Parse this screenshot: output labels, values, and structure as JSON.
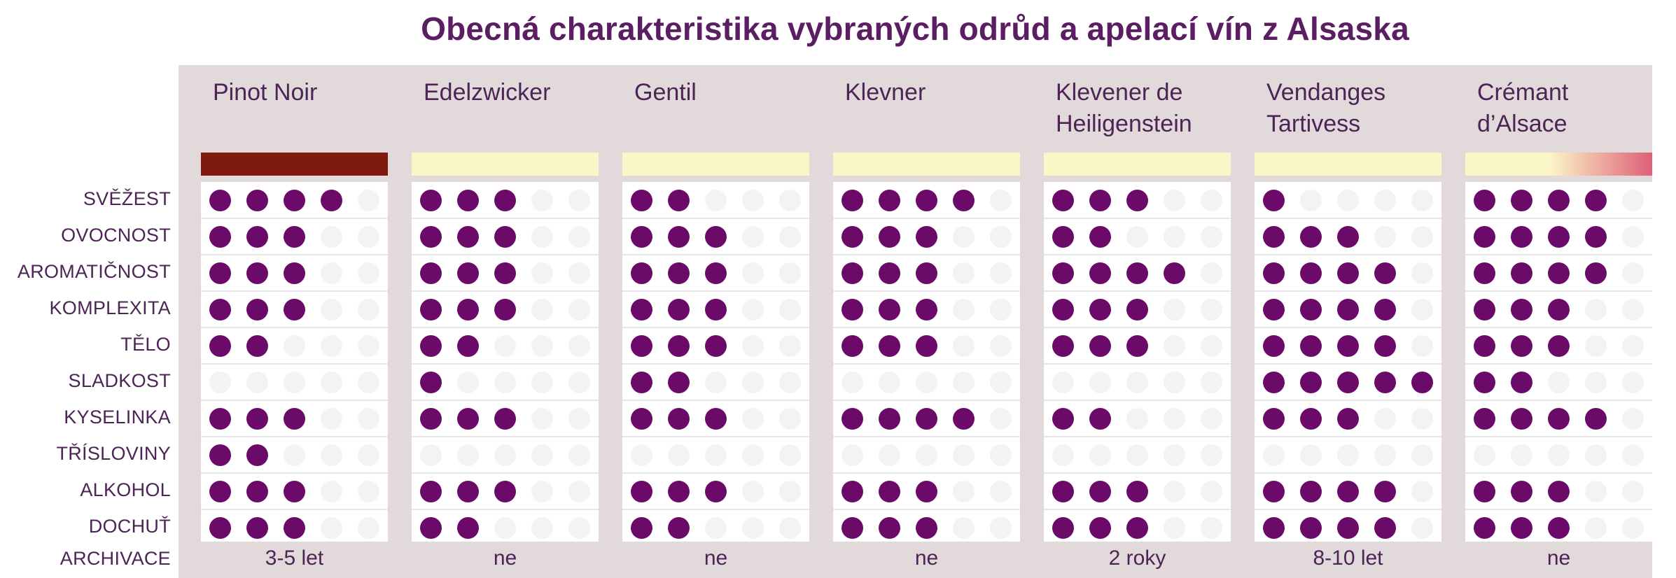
{
  "title": "Obecná charakteristika vybraných odrůd a apelací vín z Alsaska",
  "chart_data": {
    "type": "table",
    "title": "Obecná charakteristika vybraných odrůd a apelací vín z Alsaska",
    "scale_max": 5,
    "rows": [
      "SVĚŽEST",
      "OVOCNOST",
      "AROMATIČNOST",
      "KOMPLEXITA",
      "TĚLO",
      "SLADKOST",
      "KYSELINKA",
      "TŘÍSLOVINY",
      "ALKOHOL",
      "DOCHUŤ"
    ],
    "archive_label": "ARCHIVACE",
    "columns": [
      {
        "name": "Pinot Noir",
        "wine_color": [
          "#7f1a0e",
          "#7f1a0e"
        ],
        "values": [
          4,
          3,
          3,
          3,
          2,
          0,
          3,
          2,
          3,
          3
        ],
        "archive": "3-5 let"
      },
      {
        "name": "Edelzwicker",
        "wine_color": [
          "#fbf6c8",
          "#fbf6c8"
        ],
        "values": [
          3,
          3,
          3,
          3,
          2,
          1,
          3,
          0,
          3,
          2
        ],
        "archive": "ne"
      },
      {
        "name": "Gentil",
        "wine_color": [
          "#fbf6c8",
          "#fbf6c8"
        ],
        "values": [
          2,
          3,
          3,
          3,
          3,
          2,
          3,
          0,
          3,
          2
        ],
        "archive": "ne"
      },
      {
        "name": "Klevner",
        "wine_color": [
          "#fbf6c8",
          "#fbf6c8"
        ],
        "values": [
          4,
          3,
          3,
          3,
          3,
          0,
          4,
          0,
          3,
          3
        ],
        "archive": "ne"
      },
      {
        "name": "Klevener de Heiligenstein",
        "wine_color": [
          "#fbf6c8",
          "#fbf6c8"
        ],
        "values": [
          3,
          2,
          4,
          3,
          3,
          0,
          2,
          0,
          3,
          3
        ],
        "archive": "2 roky"
      },
      {
        "name": "Vendanges Tartivess",
        "wine_color": [
          "#fbf6c8",
          "#fbf6c8"
        ],
        "values": [
          1,
          3,
          4,
          4,
          4,
          5,
          3,
          0,
          4,
          4
        ],
        "archive": "8-10 let"
      },
      {
        "name": "Crémant d’Alsace",
        "wine_color": [
          "#fbf6c8",
          "#df5f78"
        ],
        "values": [
          4,
          4,
          4,
          3,
          3,
          2,
          4,
          0,
          3,
          3
        ],
        "archive": "ne"
      }
    ],
    "colors": {
      "dot_on": "#6c0a6a",
      "dot_off": "#f3f3f3",
      "header_bg": "#e1d9da",
      "text": "#4d2456"
    }
  }
}
